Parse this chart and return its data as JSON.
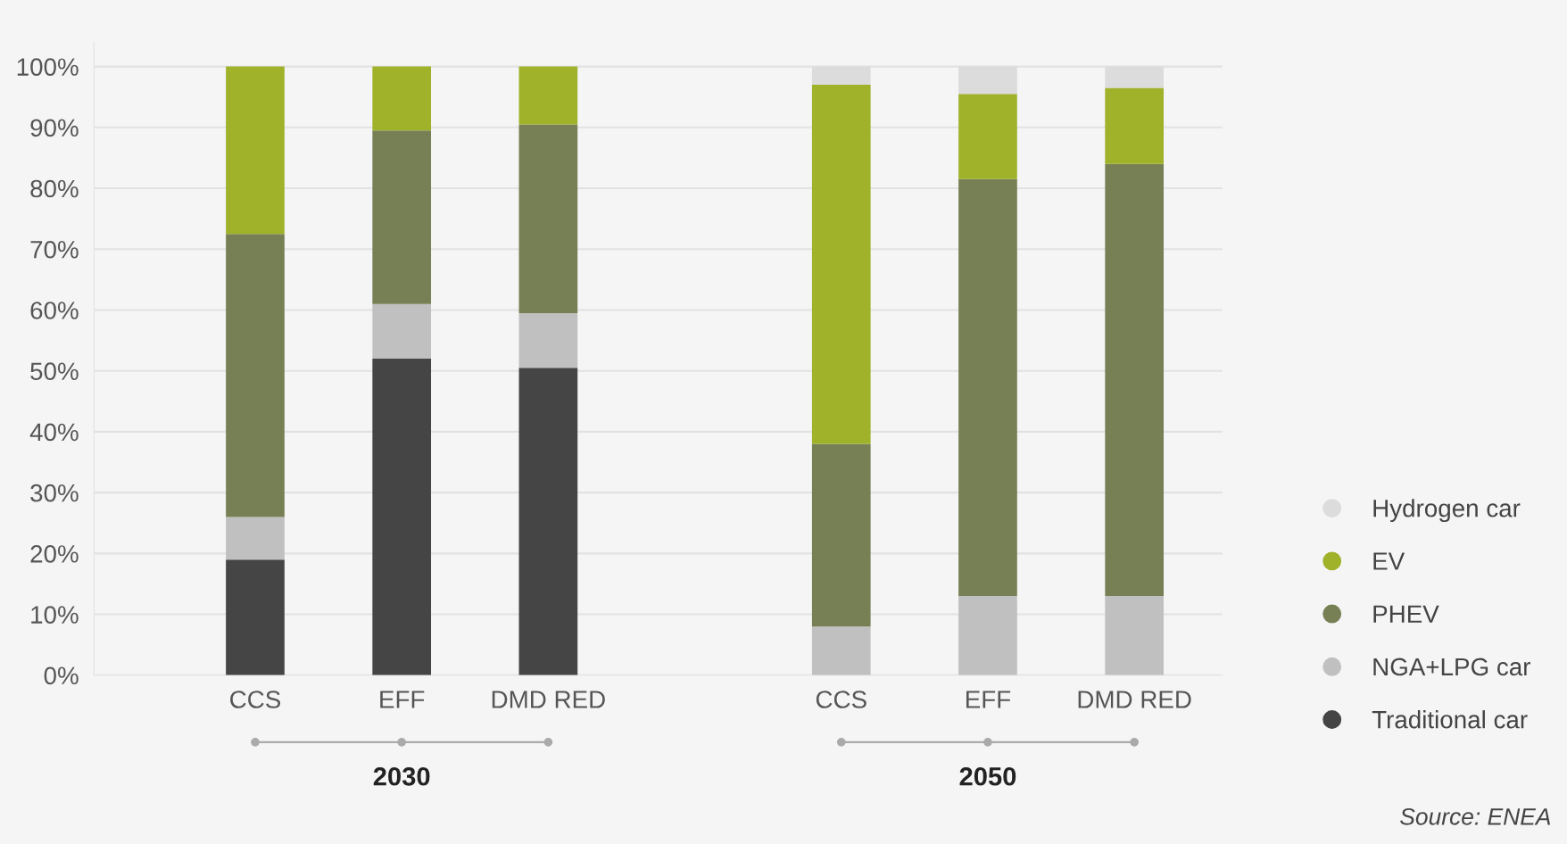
{
  "chart_data": {
    "type": "bar",
    "stacked": true,
    "categories": [
      "CCS",
      "EFF",
      "DMD RED",
      null,
      "CCS",
      "EFF",
      "DMD RED"
    ],
    "series": [
      {
        "name": "Traditional car",
        "color": "#454545",
        "values": [
          19,
          52,
          50.5,
          null,
          0,
          0,
          0
        ]
      },
      {
        "name": "NGA+LPG car",
        "color": "#c0c0c0",
        "values": [
          7,
          9,
          9,
          null,
          8,
          13,
          13
        ]
      },
      {
        "name": "PHEV",
        "color": "#768054",
        "values": [
          46.5,
          28.5,
          31,
          null,
          30,
          68.5,
          71
        ]
      },
      {
        "name": "EV",
        "color": "#a0b22a",
        "values": [
          27.5,
          10.5,
          9.5,
          null,
          59,
          14,
          12.5
        ]
      },
      {
        "name": "Hydrogen car",
        "color": "#dcdcdc",
        "values": [
          0,
          0,
          0,
          null,
          3,
          4.5,
          3.5
        ]
      }
    ],
    "ylim": [
      0,
      104
    ],
    "yticks": [
      {
        "value": 0,
        "label": "0%"
      },
      {
        "value": 10,
        "label": "10%"
      },
      {
        "value": 20,
        "label": "20%"
      },
      {
        "value": 30,
        "label": "30%"
      },
      {
        "value": 40,
        "label": "40%"
      },
      {
        "value": 50,
        "label": "50%"
      },
      {
        "value": 60,
        "label": "60%"
      },
      {
        "value": 70,
        "label": "70%"
      },
      {
        "value": 80,
        "label": "80%"
      },
      {
        "value": 90,
        "label": "90%"
      },
      {
        "value": 100,
        "label": "100%"
      }
    ],
    "grid": "y",
    "legend": "right",
    "annotations": [
      "2030",
      "2050",
      "Source: ENEA"
    ]
  }
}
